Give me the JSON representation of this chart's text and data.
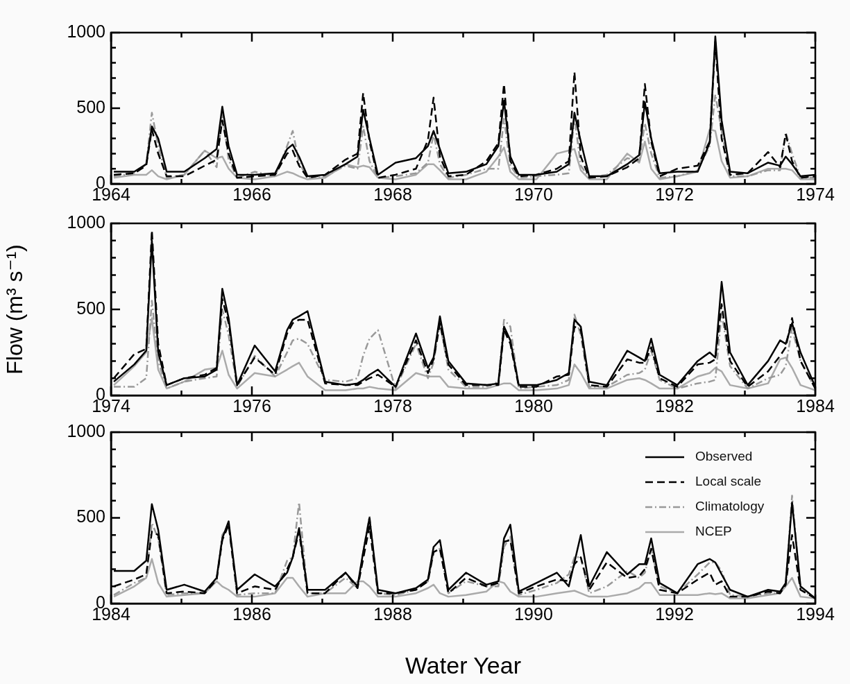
{
  "chart_data": [
    {
      "type": "line",
      "xlim": [
        1964,
        1974
      ],
      "ylim": [
        0,
        1000
      ],
      "xticks": [
        1964,
        {
          "value": 1965,
          "label": null
        },
        1966,
        {
          "value": 1967,
          "label": null
        },
        1968,
        {
          "value": 1969,
          "label": null
        },
        1970,
        {
          "value": 1971,
          "label": null
        },
        1972,
        {
          "value": 1973,
          "label": null
        },
        1974
      ],
      "yticks": [
        0,
        {
          "value": 100,
          "label": null
        },
        {
          "value": 200,
          "label": null
        },
        {
          "value": 300,
          "label": null
        },
        {
          "value": 400,
          "label": null
        },
        500,
        {
          "value": 600,
          "label": null
        },
        {
          "value": 700,
          "label": null
        },
        {
          "value": 800,
          "label": null
        },
        {
          "value": 900,
          "label": null
        },
        1000
      ],
      "x": [
        1964.04,
        1964.33,
        1964.5,
        1964.58,
        1964.67,
        1964.79,
        1965.04,
        1965.33,
        1965.5,
        1965.58,
        1965.67,
        1965.79,
        1966.04,
        1966.33,
        1966.5,
        1966.58,
        1966.67,
        1966.79,
        1967.04,
        1967.33,
        1967.5,
        1967.58,
        1967.67,
        1967.79,
        1968.04,
        1968.33,
        1968.5,
        1968.58,
        1968.67,
        1968.79,
        1969.04,
        1969.33,
        1969.5,
        1969.58,
        1969.67,
        1969.79,
        1970.04,
        1970.33,
        1970.5,
        1970.58,
        1970.67,
        1970.79,
        1971.04,
        1971.33,
        1971.5,
        1971.58,
        1971.67,
        1971.79,
        1972.04,
        1972.33,
        1972.5,
        1972.58,
        1972.67,
        1972.79,
        1973.04,
        1973.33,
        1973.5,
        1973.58,
        1973.67,
        1973.79,
        1974
      ],
      "series": [
        {
          "color": "#000000",
          "line_style": "solid",
          "values": [
            80,
            80,
            130,
            380,
            300,
            80,
            80,
            170,
            230,
            510,
            250,
            60,
            60,
            70,
            230,
            260,
            180,
            50,
            60,
            130,
            180,
            490,
            300,
            60,
            140,
            170,
            250,
            350,
            230,
            70,
            80,
            130,
            250,
            550,
            180,
            60,
            60,
            80,
            130,
            470,
            280,
            50,
            50,
            130,
            190,
            540,
            300,
            70,
            80,
            80,
            270,
            975,
            420,
            80,
            70,
            140,
            120,
            180,
            130,
            50,
            60
          ]
        },
        {
          "color": "#000000",
          "line_style": "dashed",
          "values": [
            60,
            70,
            120,
            360,
            200,
            50,
            50,
            120,
            160,
            420,
            200,
            40,
            50,
            60,
            200,
            220,
            120,
            40,
            60,
            160,
            200,
            600,
            280,
            40,
            60,
            100,
            290,
            570,
            180,
            50,
            60,
            150,
            270,
            660,
            150,
            50,
            60,
            100,
            150,
            740,
            180,
            40,
            50,
            110,
            170,
            660,
            280,
            50,
            100,
            120,
            280,
            940,
            300,
            60,
            70,
            210,
            110,
            330,
            150,
            40,
            50
          ]
        },
        {
          "color": "#999999",
          "line_style": "dashdot",
          "values": [
            50,
            70,
            130,
            470,
            250,
            40,
            60,
            220,
            110,
            470,
            160,
            40,
            80,
            50,
            250,
            350,
            140,
            40,
            50,
            120,
            100,
            380,
            150,
            40,
            50,
            70,
            140,
            330,
            130,
            40,
            60,
            100,
            100,
            430,
            120,
            40,
            50,
            60,
            70,
            440,
            120,
            40,
            60,
            170,
            150,
            400,
            200,
            40,
            50,
            90,
            250,
            590,
            350,
            50,
            50,
            90,
            90,
            340,
            200,
            40,
            40
          ]
        },
        {
          "color": "#aaaaaa",
          "line_style": "solid",
          "values": [
            40,
            60,
            60,
            90,
            50,
            30,
            60,
            220,
            170,
            180,
            100,
            40,
            30,
            50,
            80,
            70,
            50,
            30,
            40,
            130,
            110,
            120,
            110,
            40,
            30,
            60,
            130,
            130,
            90,
            30,
            30,
            80,
            180,
            240,
            80,
            30,
            30,
            200,
            220,
            230,
            90,
            30,
            30,
            200,
            140,
            280,
            100,
            30,
            50,
            80,
            360,
            350,
            150,
            40,
            50,
            100,
            100,
            100,
            90,
            30,
            30
          ]
        }
      ]
    },
    {
      "type": "line",
      "ylabel": "Flow (m³ s⁻¹)",
      "xlim": [
        1974,
        1984
      ],
      "ylim": [
        0,
        1000
      ],
      "xticks": [
        1974,
        {
          "value": 1975,
          "label": null
        },
        1976,
        {
          "value": 1977,
          "label": null
        },
        1978,
        {
          "value": 1979,
          "label": null
        },
        1980,
        {
          "value": 1981,
          "label": null
        },
        1982,
        {
          "value": 1983,
          "label": null
        },
        1984
      ],
      "yticks": [
        0,
        {
          "value": 100,
          "label": null
        },
        {
          "value": 200,
          "label": null
        },
        {
          "value": 300,
          "label": null
        },
        {
          "value": 400,
          "label": null
        },
        500,
        {
          "value": 600,
          "label": null
        },
        {
          "value": 700,
          "label": null
        },
        {
          "value": 800,
          "label": null
        },
        {
          "value": 900,
          "label": null
        },
        1000
      ],
      "x": [
        1974.04,
        1974.33,
        1974.5,
        1974.58,
        1974.67,
        1974.79,
        1975.04,
        1975.33,
        1975.5,
        1975.58,
        1975.67,
        1975.79,
        1976.04,
        1976.33,
        1976.5,
        1976.58,
        1976.67,
        1976.79,
        1977.04,
        1977.33,
        1977.5,
        1977.58,
        1977.67,
        1977.79,
        1978.04,
        1978.33,
        1978.5,
        1978.58,
        1978.67,
        1978.79,
        1979.04,
        1979.33,
        1979.5,
        1979.58,
        1979.67,
        1979.79,
        1980.04,
        1980.33,
        1980.5,
        1980.58,
        1980.67,
        1980.79,
        1981.04,
        1981.33,
        1981.5,
        1981.58,
        1981.67,
        1981.79,
        1982.04,
        1982.33,
        1982.5,
        1982.58,
        1982.67,
        1982.79,
        1983.04,
        1983.33,
        1983.5,
        1983.58,
        1983.67,
        1983.79,
        1984
      ],
      "series": [
        {
          "color": "#000000",
          "line_style": "solid",
          "values": [
            80,
            180,
            260,
            900,
            250,
            60,
            100,
            110,
            150,
            620,
            450,
            60,
            290,
            140,
            380,
            440,
            460,
            490,
            80,
            60,
            70,
            90,
            120,
            150,
            50,
            360,
            160,
            220,
            460,
            200,
            70,
            60,
            70,
            400,
            320,
            60,
            60,
            90,
            130,
            440,
            400,
            80,
            60,
            260,
            220,
            200,
            330,
            120,
            60,
            200,
            250,
            220,
            660,
            250,
            60,
            200,
            320,
            300,
            420,
            250,
            50
          ]
        },
        {
          "color": "#000000",
          "line_style": "dashed",
          "values": [
            100,
            240,
            270,
            960,
            300,
            60,
            100,
            120,
            160,
            560,
            420,
            60,
            220,
            120,
            360,
            420,
            440,
            440,
            70,
            60,
            60,
            80,
            100,
            120,
            50,
            320,
            130,
            210,
            420,
            180,
            60,
            60,
            60,
            380,
            300,
            50,
            50,
            110,
            120,
            400,
            380,
            60,
            50,
            210,
            190,
            190,
            280,
            100,
            50,
            180,
            190,
            210,
            530,
            200,
            50,
            140,
            230,
            280,
            450,
            200,
            40
          ]
        },
        {
          "color": "#999999",
          "line_style": "dashdot",
          "values": [
            50,
            50,
            100,
            550,
            200,
            40,
            80,
            100,
            110,
            500,
            350,
            50,
            230,
            110,
            250,
            320,
            330,
            300,
            90,
            80,
            100,
            230,
            330,
            380,
            40,
            300,
            100,
            190,
            420,
            150,
            50,
            50,
            80,
            440,
            400,
            40,
            50,
            60,
            90,
            470,
            350,
            50,
            50,
            120,
            130,
            150,
            260,
            90,
            40,
            70,
            80,
            90,
            480,
            170,
            40,
            100,
            120,
            170,
            390,
            200,
            40
          ]
        },
        {
          "color": "#aaaaaa",
          "line_style": "solid",
          "values": [
            60,
            170,
            250,
            450,
            150,
            40,
            80,
            150,
            160,
            260,
            120,
            40,
            130,
            110,
            150,
            170,
            190,
            110,
            30,
            30,
            40,
            40,
            50,
            40,
            30,
            130,
            110,
            110,
            110,
            50,
            40,
            40,
            60,
            70,
            70,
            30,
            30,
            40,
            60,
            180,
            130,
            40,
            40,
            90,
            100,
            90,
            70,
            40,
            40,
            110,
            130,
            160,
            140,
            60,
            40,
            70,
            210,
            220,
            160,
            60,
            30
          ]
        }
      ]
    },
    {
      "type": "line",
      "xlabel": "Water Year",
      "legend": "top right",
      "xlim": [
        1984,
        1994
      ],
      "ylim": [
        0,
        1000
      ],
      "xticks": [
        1984,
        {
          "value": 1985,
          "label": null
        },
        1986,
        {
          "value": 1987,
          "label": null
        },
        1988,
        {
          "value": 1989,
          "label": null
        },
        1990,
        {
          "value": 1991,
          "label": null
        },
        1992,
        {
          "value": 1993,
          "label": null
        },
        1994
      ],
      "yticks": [
        0,
        {
          "value": 100,
          "label": null
        },
        {
          "value": 200,
          "label": null
        },
        {
          "value": 300,
          "label": null
        },
        {
          "value": 400,
          "label": null
        },
        500,
        {
          "value": 600,
          "label": null
        },
        {
          "value": 700,
          "label": null
        },
        {
          "value": 800,
          "label": null
        },
        {
          "value": 900,
          "label": null
        },
        1000
      ],
      "x": [
        1984.04,
        1984.33,
        1984.5,
        1984.58,
        1984.67,
        1984.79,
        1985.04,
        1985.33,
        1985.5,
        1985.58,
        1985.67,
        1985.79,
        1986.04,
        1986.33,
        1986.5,
        1986.58,
        1986.67,
        1986.79,
        1987.04,
        1987.33,
        1987.5,
        1987.58,
        1987.67,
        1987.79,
        1988.04,
        1988.33,
        1988.5,
        1988.58,
        1988.67,
        1988.79,
        1989.04,
        1989.33,
        1989.5,
        1989.58,
        1989.67,
        1989.79,
        1990.04,
        1990.33,
        1990.5,
        1990.58,
        1990.67,
        1990.79,
        1991.04,
        1991.33,
        1991.5,
        1991.58,
        1991.67,
        1991.79,
        1992.04,
        1992.33,
        1992.5,
        1992.58,
        1992.67,
        1992.79,
        1993.04,
        1993.33,
        1993.5,
        1993.58,
        1993.67,
        1993.79,
        1994
      ],
      "series": [
        {
          "name": "Observed",
          "color": "#000000",
          "line_style": "solid",
          "values": [
            190,
            190,
            250,
            580,
            430,
            80,
            110,
            70,
            150,
            380,
            480,
            80,
            170,
            100,
            180,
            270,
            440,
            80,
            80,
            180,
            100,
            300,
            500,
            80,
            60,
            90,
            140,
            330,
            370,
            80,
            180,
            110,
            130,
            380,
            460,
            70,
            120,
            180,
            100,
            240,
            400,
            100,
            300,
            170,
            230,
            230,
            380,
            120,
            60,
            230,
            260,
            240,
            170,
            80,
            40,
            80,
            70,
            120,
            590,
            100,
            30
          ]
        },
        {
          "name": "Local scale",
          "color": "#000000",
          "line_style": "dashed",
          "values": [
            100,
            140,
            170,
            420,
            400,
            60,
            70,
            60,
            140,
            370,
            460,
            60,
            100,
            80,
            200,
            270,
            420,
            60,
            60,
            180,
            90,
            260,
            450,
            60,
            60,
            80,
            130,
            300,
            320,
            60,
            150,
            100,
            120,
            360,
            370,
            60,
            100,
            140,
            130,
            230,
            270,
            80,
            240,
            150,
            160,
            200,
            320,
            80,
            60,
            140,
            180,
            110,
            130,
            40,
            40,
            70,
            60,
            110,
            400,
            80,
            30
          ]
        },
        {
          "name": "Climatology",
          "color": "#999999",
          "line_style": "dashdot",
          "values": [
            50,
            120,
            150,
            470,
            380,
            50,
            60,
            60,
            140,
            400,
            460,
            50,
            60,
            60,
            250,
            270,
            590,
            60,
            60,
            150,
            90,
            300,
            510,
            60,
            50,
            80,
            130,
            300,
            320,
            60,
            130,
            100,
            100,
            330,
            390,
            50,
            80,
            120,
            170,
            270,
            270,
            60,
            100,
            190,
            150,
            180,
            320,
            100,
            60,
            170,
            240,
            240,
            190,
            50,
            40,
            60,
            60,
            110,
            630,
            80,
            30
          ]
        },
        {
          "name": "NCEP",
          "color": "#aaaaaa",
          "line_style": "solid",
          "values": [
            40,
            100,
            150,
            260,
            120,
            40,
            50,
            60,
            130,
            100,
            80,
            40,
            40,
            60,
            150,
            150,
            100,
            40,
            60,
            60,
            130,
            130,
            100,
            40,
            40,
            60,
            90,
            110,
            60,
            40,
            50,
            70,
            130,
            120,
            70,
            40,
            40,
            60,
            70,
            75,
            60,
            40,
            40,
            60,
            90,
            120,
            120,
            50,
            50,
            50,
            60,
            55,
            60,
            30,
            30,
            50,
            60,
            100,
            150,
            40,
            30
          ]
        }
      ]
    }
  ]
}
